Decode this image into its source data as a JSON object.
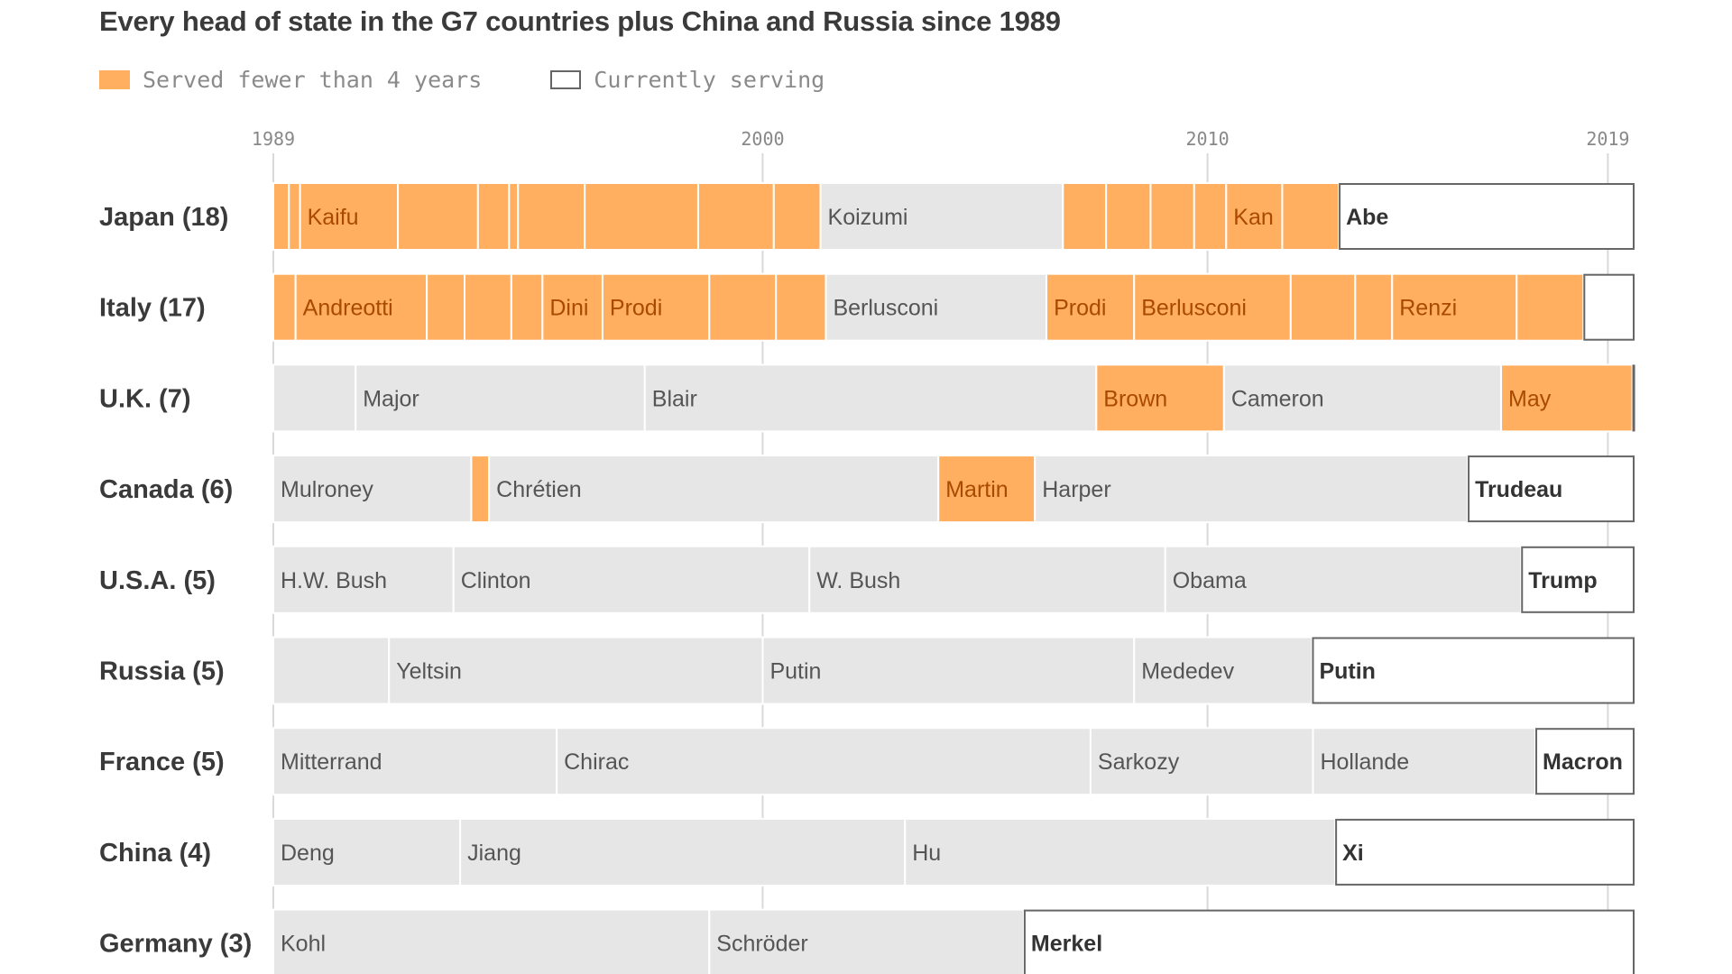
{
  "title": "Every head of state in the G7 countries plus China and Russia since 1989",
  "legend": {
    "short_label": "Served fewer than 4 years",
    "current_label": "Currently serving"
  },
  "colors": {
    "short": "#ffaf5f",
    "long": "#e6e6e7",
    "current_border": "#666666",
    "short_text": "#a94a00",
    "long_text": "#555555",
    "current_text": "#333333",
    "grid": "#d9d9d9"
  },
  "chart_data": {
    "type": "timeline",
    "title": "Every head of state in the G7 countries plus China and Russia since 1989",
    "xlim": [
      1989.0,
      2019.6
    ],
    "ticks": [
      {
        "value": 1989,
        "label": "1989"
      },
      {
        "value": 2000,
        "label": "2000"
      },
      {
        "value": 2010,
        "label": "2010"
      },
      {
        "value": 2019,
        "label": "2019"
      }
    ],
    "rows": [
      {
        "label": "Japan (18)",
        "terms": [
          {
            "start": 1989.0,
            "end": 1989.35,
            "name": "",
            "status": "short"
          },
          {
            "start": 1989.35,
            "end": 1989.6,
            "name": "",
            "status": "short"
          },
          {
            "start": 1989.6,
            "end": 1991.8,
            "name": "Kaifu",
            "status": "short"
          },
          {
            "start": 1991.8,
            "end": 1993.6,
            "name": "",
            "status": "short"
          },
          {
            "start": 1993.6,
            "end": 1994.3,
            "name": "",
            "status": "short"
          },
          {
            "start": 1994.3,
            "end": 1994.5,
            "name": "",
            "status": "short"
          },
          {
            "start": 1994.5,
            "end": 1996.0,
            "name": "",
            "status": "short"
          },
          {
            "start": 1996.0,
            "end": 1998.55,
            "name": "",
            "status": "short"
          },
          {
            "start": 1998.55,
            "end": 2000.25,
            "name": "",
            "status": "short"
          },
          {
            "start": 2000.25,
            "end": 2001.3,
            "name": "",
            "status": "short"
          },
          {
            "start": 2001.3,
            "end": 2006.75,
            "name": "Koizumi",
            "status": "long"
          },
          {
            "start": 2006.75,
            "end": 2007.72,
            "name": "",
            "status": "short"
          },
          {
            "start": 2007.72,
            "end": 2008.72,
            "name": "",
            "status": "short"
          },
          {
            "start": 2008.72,
            "end": 2009.7,
            "name": "",
            "status": "short"
          },
          {
            "start": 2009.7,
            "end": 2010.42,
            "name": "",
            "status": "short"
          },
          {
            "start": 2010.42,
            "end": 2011.68,
            "name": "Kan",
            "status": "short"
          },
          {
            "start": 2011.68,
            "end": 2012.95,
            "name": "",
            "status": "short"
          },
          {
            "start": 2012.95,
            "end": 2019.6,
            "name": "Abe",
            "status": "current"
          }
        ]
      },
      {
        "label": "Italy (17)",
        "terms": [
          {
            "start": 1989.0,
            "end": 1989.5,
            "name": "",
            "status": "short"
          },
          {
            "start": 1989.5,
            "end": 1992.45,
            "name": "Andreotti",
            "status": "short"
          },
          {
            "start": 1992.45,
            "end": 1993.3,
            "name": "",
            "status": "short"
          },
          {
            "start": 1993.3,
            "end": 1994.35,
            "name": "",
            "status": "short"
          },
          {
            "start": 1994.35,
            "end": 1995.05,
            "name": "",
            "status": "short"
          },
          {
            "start": 1995.05,
            "end": 1996.4,
            "name": "Dini",
            "status": "short"
          },
          {
            "start": 1996.4,
            "end": 1998.8,
            "name": "Prodi",
            "status": "short"
          },
          {
            "start": 1998.8,
            "end": 2000.3,
            "name": "",
            "status": "short"
          },
          {
            "start": 2000.3,
            "end": 2001.42,
            "name": "",
            "status": "short"
          },
          {
            "start": 2001.42,
            "end": 2006.38,
            "name": "Berlusconi",
            "status": "long"
          },
          {
            "start": 2006.38,
            "end": 2008.35,
            "name": "Prodi",
            "status": "short"
          },
          {
            "start": 2008.35,
            "end": 2011.87,
            "name": "Berlusconi",
            "status": "short"
          },
          {
            "start": 2011.87,
            "end": 2013.32,
            "name": "",
            "status": "short"
          },
          {
            "start": 2013.32,
            "end": 2014.15,
            "name": "",
            "status": "short"
          },
          {
            "start": 2014.15,
            "end": 2016.95,
            "name": "Renzi",
            "status": "short"
          },
          {
            "start": 2016.95,
            "end": 2018.45,
            "name": "",
            "status": "short"
          },
          {
            "start": 2018.45,
            "end": 2019.6,
            "name": "",
            "status": "current"
          }
        ]
      },
      {
        "label": "U.K. (7)",
        "terms": [
          {
            "start": 1989.0,
            "end": 1990.85,
            "name": "",
            "status": "long"
          },
          {
            "start": 1990.85,
            "end": 1997.35,
            "name": "Major",
            "status": "long"
          },
          {
            "start": 1997.35,
            "end": 2007.5,
            "name": "Blair",
            "status": "long"
          },
          {
            "start": 2007.5,
            "end": 2010.37,
            "name": "Brown",
            "status": "short"
          },
          {
            "start": 2010.37,
            "end": 2016.6,
            "name": "Cameron",
            "status": "long"
          },
          {
            "start": 2016.6,
            "end": 2019.55,
            "name": "May",
            "status": "short"
          },
          {
            "start": 2019.55,
            "end": 2019.6,
            "name": "",
            "status": "current"
          }
        ]
      },
      {
        "label": "Canada (6)",
        "terms": [
          {
            "start": 1989.0,
            "end": 1993.45,
            "name": "Mulroney",
            "status": "long"
          },
          {
            "start": 1993.45,
            "end": 1993.85,
            "name": "",
            "status": "short"
          },
          {
            "start": 1993.85,
            "end": 2003.95,
            "name": "Chrétien",
            "status": "long"
          },
          {
            "start": 2003.95,
            "end": 2006.12,
            "name": "Martin",
            "status": "short"
          },
          {
            "start": 2006.12,
            "end": 2015.85,
            "name": "Harper",
            "status": "long"
          },
          {
            "start": 2015.85,
            "end": 2019.6,
            "name": "Trudeau",
            "status": "current"
          }
        ]
      },
      {
        "label": "U.S.A. (5)",
        "terms": [
          {
            "start": 1989.0,
            "end": 1993.05,
            "name": "H.W. Bush",
            "status": "long"
          },
          {
            "start": 1993.05,
            "end": 2001.05,
            "name": "Clinton",
            "status": "long"
          },
          {
            "start": 2001.05,
            "end": 2009.05,
            "name": "W. Bush",
            "status": "long"
          },
          {
            "start": 2009.05,
            "end": 2017.05,
            "name": "Obama",
            "status": "long"
          },
          {
            "start": 2017.05,
            "end": 2019.6,
            "name": "Trump",
            "status": "current"
          }
        ]
      },
      {
        "label": "Russia (5)",
        "terms": [
          {
            "start": 1989.0,
            "end": 1991.6,
            "name": "",
            "status": "long"
          },
          {
            "start": 1991.6,
            "end": 2000.0,
            "name": "Yeltsin",
            "status": "long"
          },
          {
            "start": 2000.0,
            "end": 2008.35,
            "name": "Putin",
            "status": "long"
          },
          {
            "start": 2008.35,
            "end": 2012.35,
            "name": "Mededev",
            "status": "long"
          },
          {
            "start": 2012.35,
            "end": 2019.6,
            "name": "Putin",
            "status": "current"
          }
        ]
      },
      {
        "label": "France (5)",
        "terms": [
          {
            "start": 1989.0,
            "end": 1995.37,
            "name": "Mitterrand",
            "status": "long"
          },
          {
            "start": 1995.37,
            "end": 2007.37,
            "name": "Chirac",
            "status": "long"
          },
          {
            "start": 2007.37,
            "end": 2012.37,
            "name": "Sarkozy",
            "status": "long"
          },
          {
            "start": 2012.37,
            "end": 2017.37,
            "name": "Hollande",
            "status": "long"
          },
          {
            "start": 2017.37,
            "end": 2019.6,
            "name": "Macron",
            "status": "current"
          }
        ]
      },
      {
        "label": "China (4)",
        "terms": [
          {
            "start": 1989.0,
            "end": 1993.2,
            "name": "Deng",
            "status": "long"
          },
          {
            "start": 1993.2,
            "end": 2003.2,
            "name": "Jiang",
            "status": "long"
          },
          {
            "start": 2003.2,
            "end": 2012.87,
            "name": "Hu",
            "status": "long"
          },
          {
            "start": 2012.87,
            "end": 2019.6,
            "name": "Xi",
            "status": "current"
          }
        ]
      },
      {
        "label": "Germany (3)",
        "terms": [
          {
            "start": 1989.0,
            "end": 1998.8,
            "name": "Kohl",
            "status": "long"
          },
          {
            "start": 1998.8,
            "end": 2005.87,
            "name": "Schröder",
            "status": "long"
          },
          {
            "start": 2005.87,
            "end": 2019.6,
            "name": "Merkel",
            "status": "current"
          }
        ]
      }
    ]
  }
}
